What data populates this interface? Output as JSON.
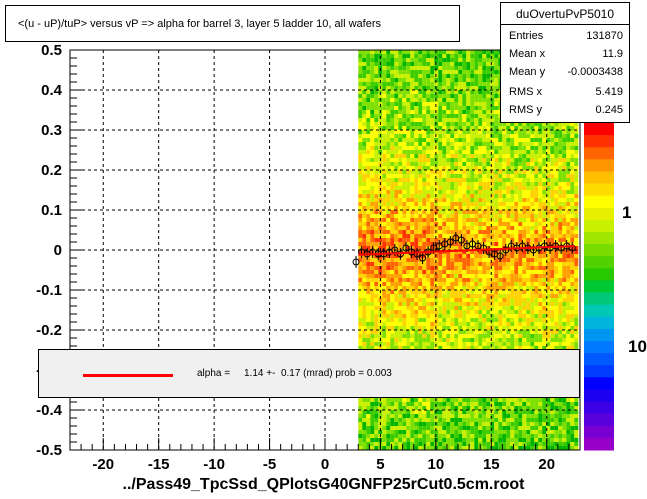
{
  "title": "<(u - uP)/tuP> versus   vP => alpha for barrel 3, layer 5 ladder 10, all wafers",
  "stats": {
    "name": "duOvertuPvP5010",
    "rows": [
      {
        "label": "Entries",
        "value": "131870"
      },
      {
        "label": "Mean x",
        "value": "11.9"
      },
      {
        "label": "Mean y",
        "value": "-0.0003438"
      },
      {
        "label": "RMS x",
        "value": "5.419"
      },
      {
        "label": "RMS y",
        "value": "0.245"
      }
    ]
  },
  "legend": {
    "text": "alpha =     1.14 +-  0.17 (mrad) prob = 0.003",
    "line_color": "#ff0000"
  },
  "footer": "../Pass49_TpcSsd_QPlotsG40GNFP25rCut0.5cm.root",
  "colors": {
    "fit_line": "#ff0000",
    "grid": "#000000"
  },
  "chart_data": {
    "type": "heatmap",
    "title": "<(u - uP)/tuP> versus   vP => alpha for barrel 3, layer 5 ladder 10, all wafers",
    "xlim": [
      -23,
      23
    ],
    "ylim": [
      -0.5,
      0.5
    ],
    "x_ticks": [
      -20,
      -15,
      -10,
      -5,
      0,
      5,
      10,
      15,
      20
    ],
    "x_tick_labels": [
      "-20",
      "-15",
      "-10",
      "-5",
      "0",
      "5",
      "10",
      "15",
      "20"
    ],
    "y_ticks": [
      -0.5,
      -0.4,
      -0.3,
      -0.2,
      -0.1,
      0,
      0.1,
      0.2,
      0.3,
      0.4,
      0.5
    ],
    "y_tick_labels": [
      "-0.5",
      "-0.4",
      "-0.3",
      "-0.2",
      "-0.1",
      "0",
      "0.1",
      "0.2",
      "0.3",
      "0.4",
      "0.5"
    ],
    "grid": true,
    "z_scale": "log",
    "z_tick_labels": [
      "1",
      "10"
    ],
    "heat_x_range": [
      3.0,
      22.5
    ],
    "profile_points": {
      "x": [
        2.8,
        3.3,
        3.8,
        4.3,
        4.8,
        5.3,
        5.8,
        6.3,
        6.8,
        7.3,
        7.8,
        8.3,
        8.8,
        9.3,
        9.8,
        10.3,
        10.8,
        11.3,
        11.8,
        12.3,
        12.8,
        13.3,
        13.8,
        14.3,
        14.8,
        15.3,
        15.8,
        16.3,
        16.8,
        17.3,
        17.8,
        18.3,
        18.8,
        19.3,
        19.8,
        20.3,
        20.8,
        21.3,
        21.8,
        22.3
      ],
      "y": [
        -0.03,
        -0.005,
        -0.01,
        -0.005,
        -0.01,
        -0.01,
        -0.005,
        0.0,
        -0.01,
        0.005,
        -0.005,
        -0.01,
        -0.02,
        -0.005,
        0.005,
        0.01,
        0.015,
        0.02,
        0.03,
        0.025,
        0.01,
        0.015,
        0.01,
        0.005,
        -0.005,
        -0.01,
        -0.015,
        0.0,
        0.01,
        0.005,
        0.01,
        0.005,
        0.0,
        0.005,
        0.01,
        0.005,
        0.01,
        0.005,
        0.01,
        0.005
      ]
    },
    "fit_line": {
      "x": [
        3.0,
        22.5
      ],
      "y": [
        -0.012,
        0.01
      ]
    },
    "legend_position": "bottom-center"
  }
}
